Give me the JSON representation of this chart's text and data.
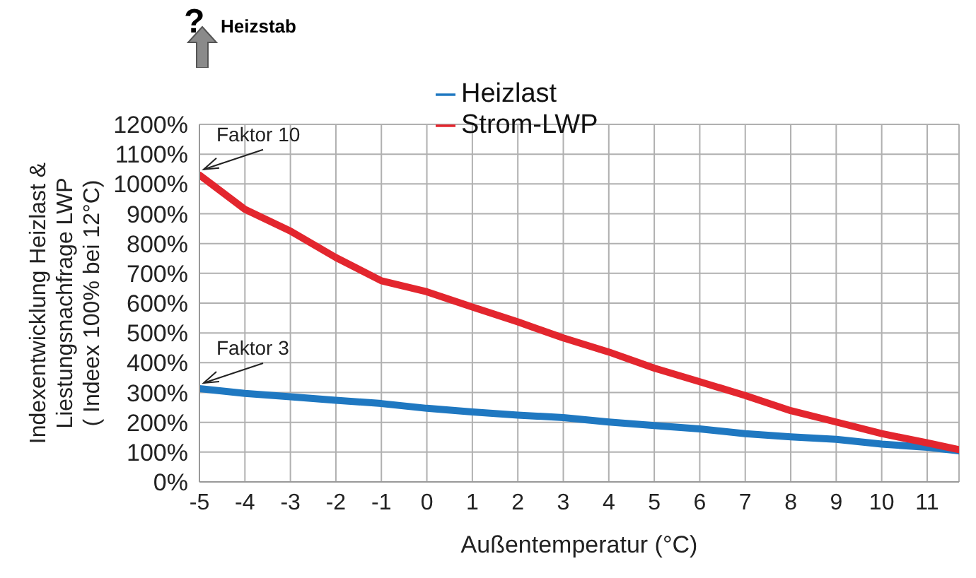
{
  "chart_data": {
    "type": "line",
    "xlabel": "Außentemperatur (°C)",
    "ylabel": "Indexentwicklung Heizlast &\nLiestungsnachfrage LWP\n( Indeex 100% bei 12°C)",
    "x": [
      -5,
      -4,
      -3,
      -2,
      -1,
      0,
      1,
      2,
      3,
      4,
      5,
      6,
      7,
      8,
      9,
      10,
      11,
      11.7
    ],
    "series": [
      {
        "name": "Heizlast",
        "color": "#1f78c1",
        "values": [
          313,
          297,
          286,
          274,
          263,
          247,
          235,
          224,
          216,
          201,
          189,
          178,
          162,
          151,
          143,
          127,
          116,
          104
        ]
      },
      {
        "name": "Strom-LWP",
        "color": "#e3262e",
        "values": [
          1030,
          915,
          842,
          753,
          675,
          638,
          587,
          537,
          483,
          436,
          382,
          336,
          290,
          239,
          201,
          162,
          131,
          108
        ]
      }
    ],
    "xlim": [
      -5,
      11.7
    ],
    "xticks": [
      -5,
      -4,
      -3,
      -2,
      -1,
      0,
      1,
      2,
      3,
      4,
      5,
      6,
      7,
      8,
      9,
      10,
      11
    ],
    "ylim": [
      0,
      1200
    ],
    "yticks": [
      {
        "value": 0,
        "label": "0%"
      },
      {
        "value": 100,
        "label": "100%"
      },
      {
        "value": 200,
        "label": "200%"
      },
      {
        "value": 300,
        "label": "300%"
      },
      {
        "value": 400,
        "label": "400%"
      },
      {
        "value": 500,
        "label": "500%"
      },
      {
        "value": 600,
        "label": "600%"
      },
      {
        "value": 700,
        "label": "700%"
      },
      {
        "value": 800,
        "label": "800%"
      },
      {
        "value": 900,
        "label": "900%"
      },
      {
        "value": 1000,
        "label": "1000%"
      },
      {
        "value": 1100,
        "label": "1100%"
      },
      {
        "value": 1200,
        "label": "1200%"
      }
    ],
    "grid": true,
    "legend": "top",
    "marker": "none",
    "line_style": "solid",
    "annotations": [
      {
        "text": "Faktor 10",
        "x": -5,
        "y": 1030
      },
      {
        "text": "Faktor 3",
        "x": -5,
        "y": 313
      },
      "?",
      "Heizstab"
    ]
  }
}
